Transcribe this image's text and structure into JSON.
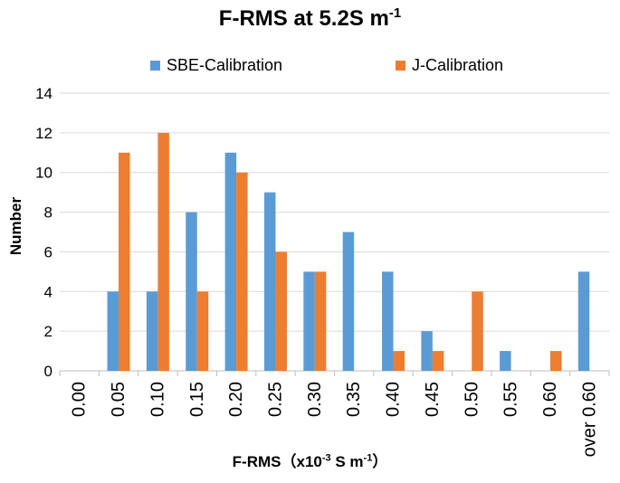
{
  "chart_data": {
    "type": "bar",
    "title": "F-RMS at 5.2S m",
    "title_sup": "-1",
    "xlabel": {
      "pre": "F-RMS（x10",
      "sup1": "-3",
      "mid": " S m",
      "sup2": "-1",
      "post": "）"
    },
    "ylabel": "Number",
    "ylim": [
      0,
      14
    ],
    "yticks": [
      0,
      2,
      4,
      6,
      8,
      10,
      12,
      14
    ],
    "grid": true,
    "legend_position": "top",
    "categories": [
      "0.00",
      "0.05",
      "0.10",
      "0.15",
      "0.20",
      "0.25",
      "0.30",
      "0.35",
      "0.40",
      "0.45",
      "0.50",
      "0.55",
      "0.60",
      "over 0.60"
    ],
    "series": [
      {
        "name": "SBE-Calibration",
        "color": "#5B9BD5",
        "values": [
          0,
          4,
          4,
          8,
          11,
          9,
          5,
          7,
          5,
          2,
          0,
          1,
          0,
          5
        ]
      },
      {
        "name": "J-Calibration",
        "color": "#ED7D31",
        "values": [
          0,
          11,
          12,
          4,
          10,
          6,
          5,
          0,
          1,
          1,
          4,
          0,
          1,
          0
        ]
      }
    ]
  }
}
